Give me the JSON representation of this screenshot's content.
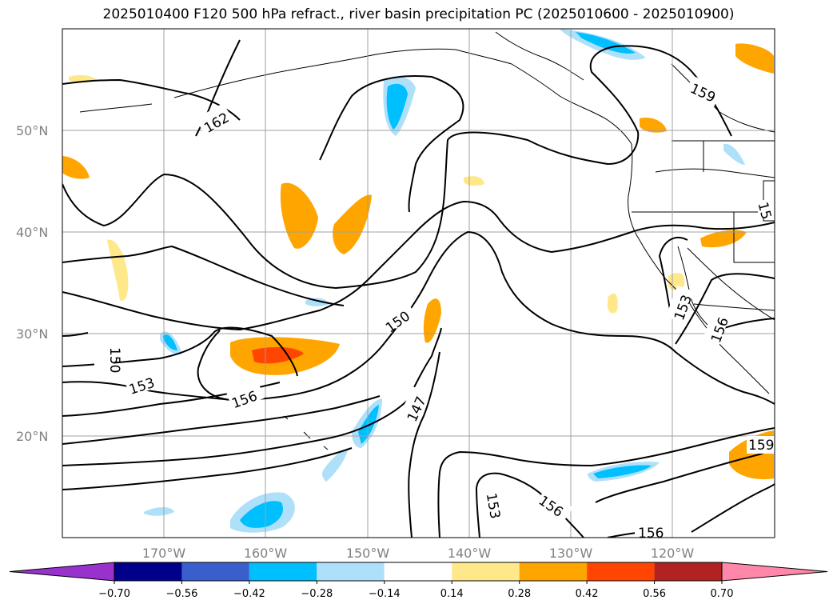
{
  "title": "2025010400 F120 500 hPa refract., river basin precipitation PC (2025010600 - 2025010900)",
  "map": {
    "lat_labels": [
      "50°N",
      "40°N",
      "30°N",
      "20°N"
    ],
    "lon_labels": [
      "170°W",
      "160°W",
      "150°W",
      "140°W",
      "130°W",
      "120°W"
    ],
    "contour_labels": [
      "162",
      "159",
      "150",
      "153",
      "156",
      "150",
      "147",
      "153",
      "156",
      "156",
      "153",
      "156",
      "159",
      "15"
    ]
  },
  "colorbar": {
    "ticks": [
      "−0.70",
      "−0.56",
      "−0.42",
      "−0.28",
      "−0.14",
      "0.14",
      "0.28",
      "0.42",
      "0.56",
      "0.70"
    ],
    "colors": [
      "#9932cc",
      "#00008b",
      "#3a5fcd",
      "#00bfff",
      "#afe0fa",
      "#ffffff",
      "#ffe88a",
      "#ffa500",
      "#ff4500",
      "#b22222",
      "#ff88aa"
    ]
  }
}
